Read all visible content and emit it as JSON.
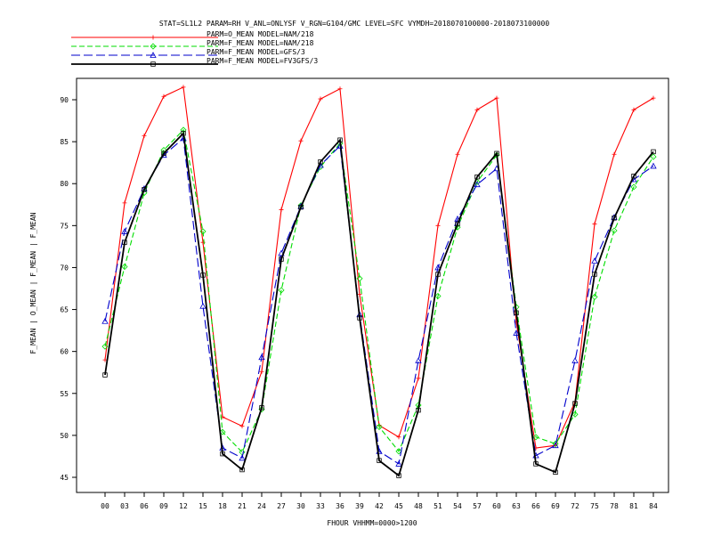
{
  "chart_data": {
    "type": "line",
    "title": "STAT=SL1L2 PARAM=RH V_ANL=ONLYSF V_RGN=G104/GMC LEVEL=SFC VYMDH=2018070100000-2018073100000",
    "xlabel": "FHOUR VHHMM=0000>1200",
    "ylabel": "F_MEAN | O_MEAN | F_MEAN | F_MEAN",
    "categories": [
      "00",
      "03",
      "06",
      "09",
      "12",
      "15",
      "18",
      "21",
      "24",
      "27",
      "30",
      "33",
      "36",
      "39",
      "42",
      "45",
      "48",
      "51",
      "54",
      "57",
      "60",
      "63",
      "66",
      "69",
      "72",
      "75",
      "78",
      "81",
      "84"
    ],
    "ylim": [
      44,
      93
    ],
    "yticks": [
      45,
      50,
      55,
      60,
      65,
      70,
      75,
      80,
      85,
      90
    ],
    "grid": false,
    "legend_position": "top-left",
    "series": [
      {
        "name": "PARM=O_MEAN MODEL=NAM/218",
        "color": "#ff0000",
        "dash": "solid",
        "marker": "plus",
        "values": [
          59.0,
          77.7,
          85.7,
          90.4,
          91.5,
          73.0,
          52.2,
          51.1,
          57.6,
          76.9,
          85.1,
          90.1,
          91.3,
          66.8,
          51.2,
          49.8,
          56.8,
          75.0,
          83.5,
          88.8,
          90.2,
          63.5,
          48.5,
          48.8,
          54.0,
          75.2,
          83.5,
          88.8,
          90.2
        ]
      },
      {
        "name": "PARM=F_MEAN MODEL=NAM/218",
        "color": "#00dd00",
        "dash": "dashed",
        "marker": "diamond",
        "values": [
          60.6,
          70.1,
          78.9,
          84.0,
          86.4,
          74.3,
          50.4,
          48.0,
          53.1,
          67.3,
          77.4,
          82.0,
          84.8,
          68.7,
          51.0,
          48.1,
          53.6,
          66.6,
          74.8,
          80.2,
          83.4,
          65.3,
          49.8,
          49.0,
          52.5,
          66.5,
          74.4,
          79.6,
          83.2
        ]
      },
      {
        "name": "PARM=F_MEAN MODEL=GFS/3",
        "color": "#0000cc",
        "dash": "longdash",
        "marker": "triangle",
        "values": [
          63.6,
          74.3,
          79.4,
          83.4,
          85.4,
          65.4,
          48.5,
          47.3,
          59.3,
          71.7,
          77.3,
          82.2,
          84.5,
          64.4,
          48.1,
          46.6,
          58.9,
          70.0,
          75.8,
          79.9,
          81.8,
          62.2,
          47.6,
          48.8,
          58.9,
          70.8,
          76.0,
          80.5,
          82.1
        ]
      },
      {
        "name": "PARM=F_MEAN MODEL=FV3GFS/3",
        "color": "#000000",
        "dash": "solid",
        "marker": "square",
        "values": [
          57.2,
          73.0,
          79.3,
          83.6,
          86.0,
          69.1,
          47.8,
          45.9,
          53.3,
          71.0,
          77.2,
          82.6,
          85.2,
          64.0,
          47.0,
          45.2,
          53.0,
          69.2,
          75.2,
          80.8,
          83.6,
          64.6,
          46.6,
          45.6,
          53.8,
          69.2,
          75.9,
          80.9,
          83.8
        ]
      }
    ]
  }
}
